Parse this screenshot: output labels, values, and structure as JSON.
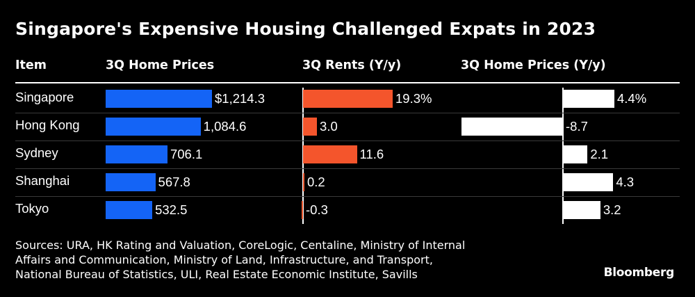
{
  "title": "Singapore's Expensive Housing Challenged Expats in 2023",
  "chart_data": {
    "type": "bar",
    "title": "Singapore's Expensive Housing Challenged Expats in 2023",
    "item_header": "Item",
    "categories": [
      "Singapore",
      "Hong Kong",
      "Sydney",
      "Shanghai",
      "Tokyo"
    ],
    "series": [
      {
        "name": "3Q Home Prices",
        "values": [
          1214.3,
          1084.6,
          706.1,
          567.8,
          532.5
        ],
        "labels": [
          "$1,214.3",
          "1,084.6",
          "706.1",
          "567.8",
          "532.5"
        ],
        "color": "#1464f6"
      },
      {
        "name": "3Q Rents (Y/y)",
        "values": [
          19.3,
          3.0,
          11.6,
          0.2,
          -0.3
        ],
        "labels": [
          "19.3%",
          "3.0",
          "11.6",
          "0.2",
          "-0.3"
        ],
        "color": "#f4552c"
      },
      {
        "name": "3Q Home Prices (Y/y)",
        "values": [
          4.4,
          -8.7,
          2.1,
          4.3,
          3.2
        ],
        "labels": [
          "4.4%",
          "-8.7",
          "2.1",
          "4.3",
          "3.2"
        ],
        "color": "#ffffff"
      }
    ]
  },
  "footer": {
    "sources_line1": "Sources: URA, HK Rating and Valuation, CoreLogic, Centaline, Ministry of Internal",
    "sources_line2": "Affairs and Communication, Ministry of Land, Infrastructure, and Transport,",
    "sources_line3": "National Bureau of Statistics, ULI, Real Estate Economic Institute, Savills",
    "brand": "Bloomberg"
  }
}
